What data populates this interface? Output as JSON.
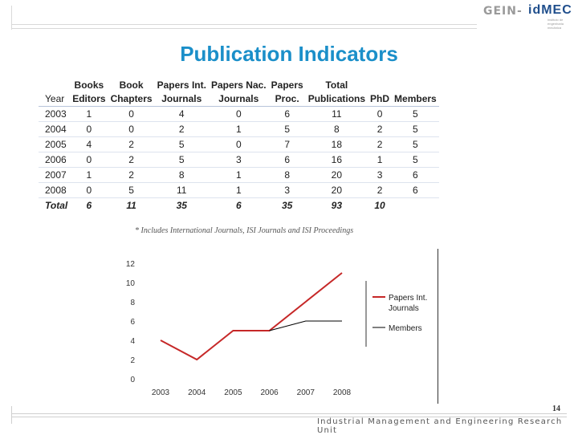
{
  "header": {
    "logo_left": "GEIN-",
    "logo_right": "idMEC",
    "logo_sub": "instituto de engenharia mecânica"
  },
  "title": "Publication Indicators",
  "table": {
    "year_header": "Year",
    "columns": [
      {
        "line1": "Books",
        "line2": "Editors"
      },
      {
        "line1": "Book",
        "line2": "Chapters"
      },
      {
        "line1": "Papers Int.",
        "line2": "Journals"
      },
      {
        "line1": "Papers Nac.",
        "line2": "Journals"
      },
      {
        "line1": "Papers",
        "line2": "Proc."
      },
      {
        "line1": "Total",
        "line2": "Publications"
      },
      {
        "line1": "",
        "line2": "PhD"
      },
      {
        "line1": "",
        "line2": "Members"
      }
    ],
    "rows": [
      {
        "year": "2003",
        "values": [
          "1",
          "0",
          "4",
          "0",
          "6",
          "11",
          "0",
          "5"
        ]
      },
      {
        "year": "2004",
        "values": [
          "0",
          "0",
          "2",
          "1",
          "5",
          "8",
          "2",
          "5"
        ]
      },
      {
        "year": "2005",
        "values": [
          "4",
          "2",
          "5",
          "0",
          "7",
          "18",
          "2",
          "5"
        ]
      },
      {
        "year": "2006",
        "values": [
          "0",
          "2",
          "5",
          "3",
          "6",
          "16",
          "1",
          "5"
        ]
      },
      {
        "year": "2007",
        "values": [
          "1",
          "2",
          "8",
          "1",
          "8",
          "20",
          "3",
          "6"
        ]
      },
      {
        "year": "2008",
        "values": [
          "0",
          "5",
          "11",
          "1",
          "3",
          "20",
          "2",
          "6"
        ]
      }
    ],
    "total": {
      "label": "Total",
      "values": [
        "6",
        "11",
        "35",
        "6",
        "35",
        "93",
        "10",
        ""
      ]
    }
  },
  "footnote": "* Includes International Journals, ISI Journals and ISI Proceedings",
  "chart_data": {
    "type": "line",
    "x": [
      "2003",
      "2004",
      "2005",
      "2006",
      "2007",
      "2008"
    ],
    "series": [
      {
        "name": "Papers Int. Journals",
        "values": [
          4,
          2,
          5,
          5,
          8,
          11
        ],
        "color": "#c62828"
      },
      {
        "name": "Members",
        "values": [
          null,
          null,
          null,
          5,
          6,
          6
        ],
        "color": "#000000"
      }
    ],
    "yticks": [
      0,
      2,
      4,
      6,
      8,
      10,
      12
    ],
    "ylim": [
      0,
      12
    ],
    "legend_position": "right",
    "legend_lines": [
      [
        "Papers Int.",
        "Journals"
      ],
      [
        "Members"
      ]
    ]
  },
  "footer": {
    "page_number": "14",
    "unit": "Industrial Management and Engineering Research Unit"
  }
}
